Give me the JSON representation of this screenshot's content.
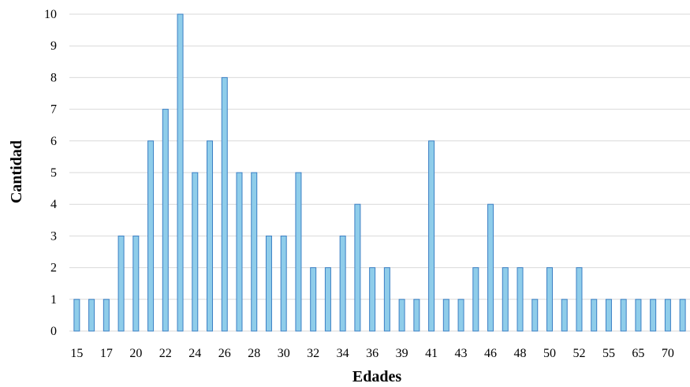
{
  "chart_data": {
    "type": "bar",
    "title": "",
    "xlabel": "Edades",
    "ylabel": "Cantidad",
    "ylim": [
      0,
      10
    ],
    "yticks": [
      0,
      1,
      2,
      3,
      4,
      5,
      6,
      7,
      8,
      9,
      10
    ],
    "grid": "horizontal",
    "categories": [
      "15",
      "16",
      "17",
      "19",
      "20",
      "21",
      "22",
      "23",
      "24",
      "25",
      "26",
      "27",
      "28",
      "29",
      "30",
      "31",
      "32",
      "33",
      "34",
      "35",
      "36",
      "37",
      "39",
      "40",
      "41",
      "42",
      "43",
      "44",
      "46",
      "47",
      "48",
      "49",
      "50",
      "51",
      "52",
      "53",
      "55",
      "58",
      "65",
      "66",
      "70",
      "71"
    ],
    "values": [
      1,
      1,
      1,
      3,
      3,
      6,
      7,
      10,
      5,
      6,
      8,
      5,
      5,
      3,
      3,
      5,
      2,
      2,
      3,
      4,
      2,
      2,
      1,
      1,
      6,
      1,
      1,
      2,
      4,
      2,
      2,
      1,
      2,
      1,
      2,
      1,
      1,
      1,
      1,
      1,
      1,
      1
    ],
    "visible_tick_labels": [
      "15",
      "17",
      "20",
      "22",
      "24",
      "26",
      "28",
      "30",
      "32",
      "34",
      "36",
      "39",
      "41",
      "43",
      "46",
      "48",
      "50",
      "52",
      "55",
      "65",
      "70"
    ],
    "colors": {
      "bar_fill": "#8fcdea",
      "bar_stroke": "#3b7fc4",
      "grid": "#d9d9d9"
    }
  }
}
